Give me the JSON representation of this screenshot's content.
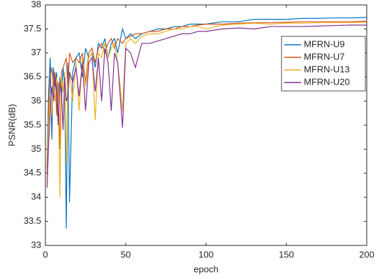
{
  "chart_data": {
    "type": "line",
    "xlabel": "epoch",
    "ylabel": "PSNR(dB)",
    "xlim": [
      0,
      200
    ],
    "ylim": [
      33,
      38
    ],
    "xticks": [
      0,
      50,
      100,
      150,
      200
    ],
    "yticks": [
      33,
      33.5,
      34,
      34.5,
      35,
      35.5,
      36,
      36.5,
      37,
      37.5,
      38
    ],
    "grid": false,
    "legend": "northeast",
    "x": [
      1,
      2,
      3,
      4,
      5,
      6,
      7,
      8,
      9,
      10,
      11,
      12,
      13,
      14,
      15,
      17,
      19,
      21,
      23,
      25,
      27,
      29,
      31,
      33,
      35,
      37,
      39,
      41,
      43,
      45,
      48,
      50,
      53,
      56,
      60,
      65,
      70,
      75,
      80,
      85,
      90,
      95,
      100,
      110,
      120,
      130,
      140,
      150,
      160,
      170,
      180,
      190,
      200
    ],
    "series": [
      {
        "name": "MFRN-U9",
        "color": "#0072bd",
        "values": [
          34.6,
          36.2,
          36.9,
          35.2,
          36.7,
          36.3,
          36.6,
          35.5,
          36.5,
          36.0,
          36.7,
          36.3,
          33.35,
          36.8,
          33.9,
          36.6,
          36.9,
          37.0,
          36.5,
          37.1,
          36.9,
          37.0,
          36.7,
          37.2,
          37.1,
          37.3,
          36.9,
          37.2,
          37.3,
          37.0,
          37.5,
          37.3,
          37.4,
          37.3,
          37.4,
          37.45,
          37.5,
          37.5,
          37.55,
          37.55,
          37.6,
          37.6,
          37.6,
          37.65,
          37.65,
          37.7,
          37.7,
          37.7,
          37.72,
          37.72,
          37.73,
          37.73,
          37.74
        ]
      },
      {
        "name": "MFRN-U7",
        "color": "#d95319",
        "values": [
          34.5,
          35.8,
          36.5,
          36.7,
          36.3,
          36.6,
          35.7,
          36.4,
          35.0,
          36.6,
          36.7,
          36.8,
          36.9,
          36.2,
          37.0,
          36.8,
          36.9,
          36.8,
          37.0,
          36.4,
          37.0,
          37.1,
          36.8,
          37.1,
          37.2,
          37.0,
          37.2,
          37.3,
          37.1,
          37.3,
          37.2,
          37.3,
          37.35,
          37.4,
          37.4,
          37.45,
          37.45,
          37.5,
          37.5,
          37.55,
          37.55,
          37.58,
          37.6,
          37.6,
          37.62,
          37.63,
          37.63,
          37.64,
          37.65,
          37.65,
          37.65,
          37.65,
          37.66
        ]
      },
      {
        "name": "MFRN-U13",
        "color": "#edb120",
        "values": [
          34.3,
          35.5,
          36.1,
          35.7,
          36.3,
          36.0,
          36.5,
          36.1,
          34.0,
          36.5,
          36.2,
          36.6,
          34.7,
          36.3,
          36.6,
          36.0,
          36.8,
          35.8,
          36.9,
          36.3,
          36.9,
          37.0,
          35.6,
          37.0,
          36.9,
          37.2,
          36.9,
          37.1,
          37.2,
          36.8,
          35.8,
          37.2,
          37.3,
          37.2,
          37.35,
          37.4,
          37.4,
          37.45,
          37.5,
          37.5,
          37.55,
          37.55,
          37.5,
          37.58,
          37.6,
          37.62,
          37.6,
          37.62,
          37.62,
          37.63,
          37.63,
          37.63,
          37.64
        ]
      },
      {
        "name": "MFRN-U20",
        "color": "#7e2f8e",
        "values": [
          34.2,
          35.1,
          35.8,
          36.3,
          36.0,
          36.5,
          36.2,
          35.5,
          36.4,
          36.2,
          35.4,
          36.5,
          36.0,
          36.1,
          36.6,
          36.4,
          36.7,
          36.1,
          36.8,
          35.8,
          36.8,
          36.9,
          36.2,
          36.9,
          36.0,
          37.1,
          36.8,
          35.8,
          37.0,
          36.8,
          35.45,
          37.1,
          37.0,
          36.7,
          37.2,
          37.2,
          37.25,
          37.3,
          37.35,
          37.4,
          37.4,
          37.45,
          37.45,
          37.5,
          37.52,
          37.5,
          37.55,
          37.55,
          37.55,
          37.56,
          37.57,
          37.58,
          37.58
        ]
      }
    ]
  }
}
